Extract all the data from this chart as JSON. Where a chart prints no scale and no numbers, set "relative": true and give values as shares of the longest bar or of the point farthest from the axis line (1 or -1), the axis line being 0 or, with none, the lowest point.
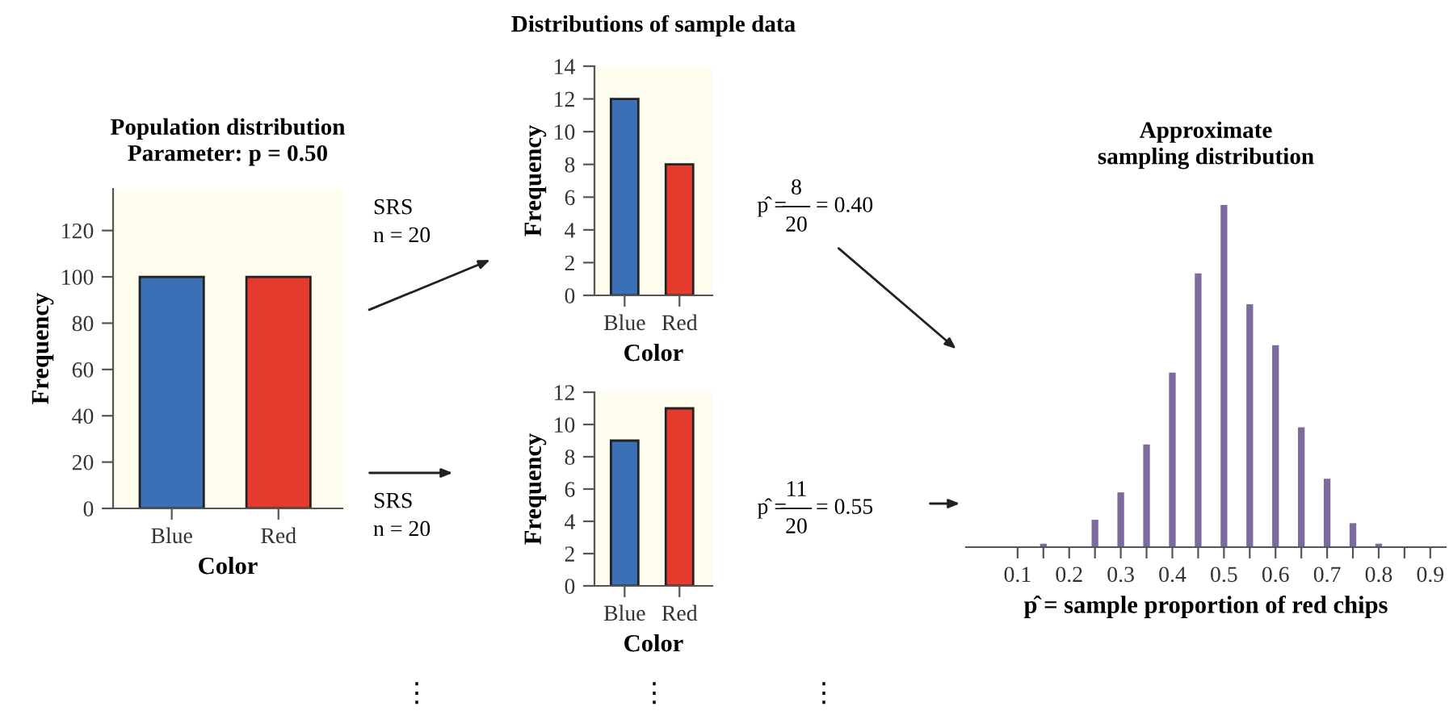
{
  "chart_data": [
    {
      "type": "bar",
      "title": "Population distribution\nParameter: p = 0.50",
      "xlabel": "Color",
      "ylabel": "Frequency",
      "categories": [
        "Blue",
        "Red"
      ],
      "values": [
        100,
        100
      ],
      "colors": [
        "#3b6fb6",
        "#e53b2f"
      ],
      "ylim": [
        0,
        138
      ],
      "yticks": [
        0,
        20,
        40,
        60,
        80,
        100,
        120
      ],
      "annotations": [
        "SRS\nn = 20",
        "SRS\nn = 20",
        "⋮"
      ]
    },
    {
      "type": "bar",
      "title": "Distributions of sample data",
      "xlabel": "Color",
      "ylabel": "Frequency",
      "categories": [
        "Blue",
        "Red"
      ],
      "values": [
        12,
        8
      ],
      "colors": [
        "#3b6fb6",
        "#e53b2f"
      ],
      "ylim": [
        0,
        14
      ],
      "yticks": [
        0,
        2,
        4,
        6,
        8,
        10,
        12,
        14
      ],
      "annotations": [
        "p̂ =",
        "8",
        "20",
        "= 0.40"
      ]
    },
    {
      "type": "bar",
      "xlabel": "Color",
      "ylabel": "Frequency",
      "categories": [
        "Blue",
        "Red"
      ],
      "values": [
        9,
        11
      ],
      "colors": [
        "#3b6fb6",
        "#e53b2f"
      ],
      "ylim": [
        0,
        12
      ],
      "yticks": [
        0,
        2,
        4,
        6,
        8,
        10,
        12
      ],
      "annotations": [
        "p̂ =",
        "11",
        "20",
        "= 0.55",
        "⋮",
        "⋮"
      ]
    },
    {
      "type": "bar",
      "title": "Approximate\nsampling distribution",
      "xlabel": "p̂ = sample proportion of red chips",
      "relative": true,
      "color": "#7d6b9e",
      "x": [
        0.15,
        0.25,
        0.3,
        0.35,
        0.4,
        0.45,
        0.5,
        0.55,
        0.6,
        0.65,
        0.7,
        0.75,
        0.8
      ],
      "values": [
        0.01,
        0.08,
        0.16,
        0.3,
        0.51,
        0.8,
        1,
        0.71,
        0.59,
        0.35,
        0.2,
        0.07,
        0.01
      ],
      "xlim": [
        0.0,
        0.93
      ],
      "xticks": [
        0.1,
        {
          "value": 0.15,
          "label": null
        },
        0.2,
        {
          "value": 0.25,
          "label": null
        },
        0.3,
        {
          "value": 0.35,
          "label": null
        },
        0.4,
        {
          "value": 0.45,
          "label": null
        },
        0.5,
        {
          "value": 0.55,
          "label": null
        },
        0.6,
        {
          "value": 0.65,
          "label": null
        },
        0.7,
        {
          "value": 0.75,
          "label": null
        },
        0.8,
        {
          "value": 0.85,
          "label": null
        },
        0.9
      ]
    }
  ]
}
